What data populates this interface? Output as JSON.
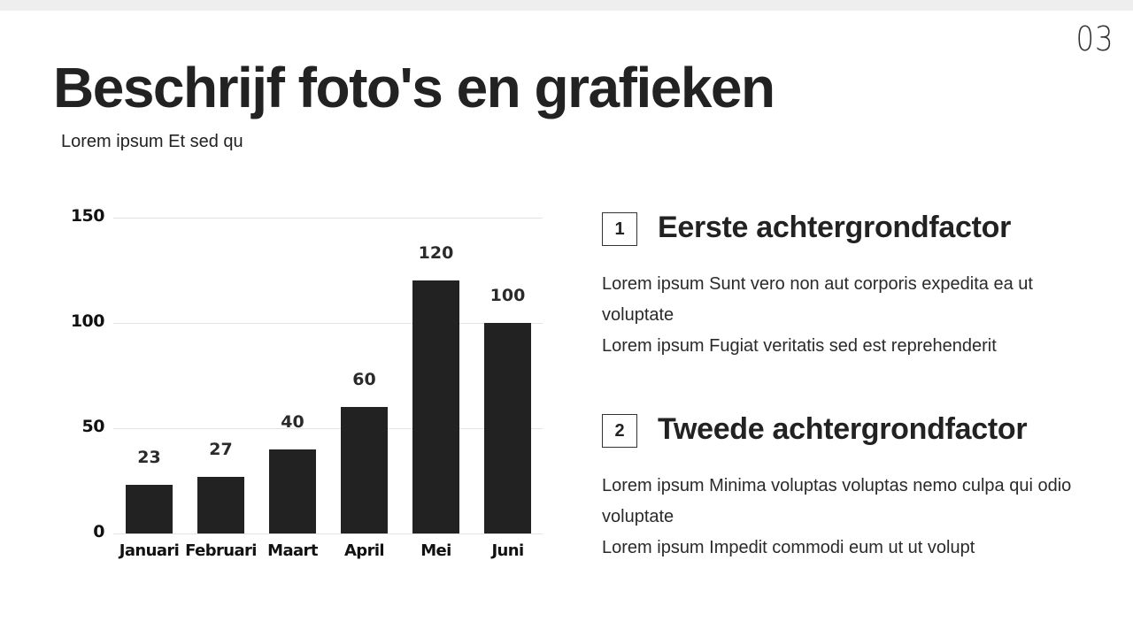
{
  "slide": {
    "page_number": "03",
    "title": "Beschrijf foto's en grafieken",
    "subtitle": "Lorem ipsum Et sed qu"
  },
  "colors": {
    "bar": "#222222",
    "text": "#222222",
    "gridline": "#e3e3e3",
    "top_strip": "#eeeeee"
  },
  "chart_data": {
    "type": "bar",
    "title": "",
    "xlabel": "",
    "ylabel": "",
    "categories": [
      "Januari",
      "Februari",
      "Maart",
      "April",
      "Mei",
      "Juni"
    ],
    "values": [
      23,
      27,
      40,
      60,
      120,
      100
    ],
    "data_labels": [
      "23",
      "27",
      "40",
      "60",
      "120",
      "100"
    ],
    "y_ticks": [
      "150",
      "100",
      "50",
      "0"
    ],
    "ylim": [
      0,
      150
    ],
    "grid": true,
    "legend": null
  },
  "factors": [
    {
      "number": "1",
      "title": "Eerste achtergrondfactor",
      "lines": [
        "Lorem ipsum Sunt vero non aut corporis expedita ea ut voluptate",
        "Lorem ipsum Fugiat veritatis sed est reprehenderit"
      ]
    },
    {
      "number": "2",
      "title": "Tweede achtergrondfactor",
      "lines": [
        "Lorem ipsum Minima voluptas voluptas nemo culpa qui odio voluptate",
        "Lorem ipsum Impedit commodi eum ut ut volupt"
      ]
    }
  ]
}
